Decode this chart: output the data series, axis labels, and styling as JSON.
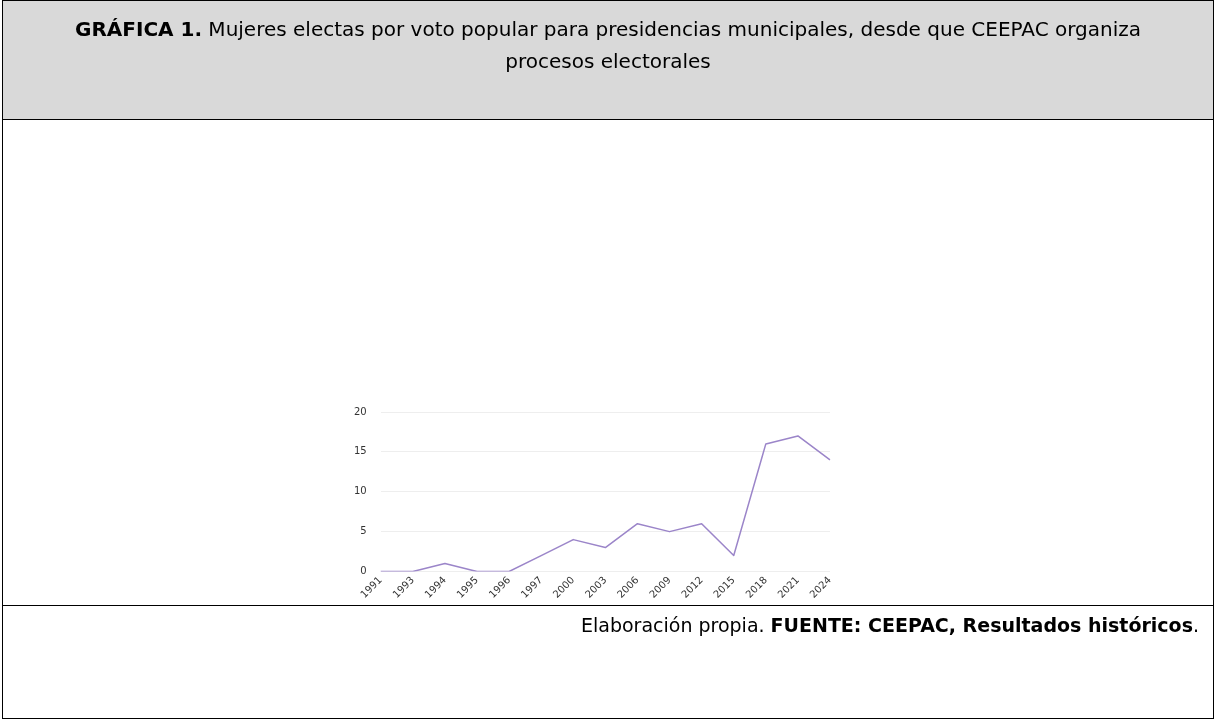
{
  "chart_data": {
    "type": "line",
    "title": "GRÁFICA 1. Mujeres electas por voto popular para presidencias municipales, desde que CEEPAC organiza procesos electorales",
    "categories": [
      "1991",
      "1993",
      "1994",
      "1995",
      "1996",
      "1997",
      "2000",
      "2003",
      "2006",
      "2009",
      "2012",
      "2015",
      "2018",
      "2021",
      "2024"
    ],
    "series": [
      {
        "color": "#9b85c9",
        "values": [
          0,
          0,
          1,
          0,
          0,
          2,
          4,
          3,
          6,
          5,
          6,
          2,
          16,
          17,
          14
        ]
      }
    ],
    "ylim": [
      0,
      20
    ],
    "yticks": [
      0,
      5,
      10,
      15,
      20
    ],
    "grid": "y",
    "legend": false,
    "marker": "none",
    "line_style": "solid",
    "annotations": [
      "Elaboración propia. FUENTE: CEEPAC, Resultados históricos."
    ]
  }
}
